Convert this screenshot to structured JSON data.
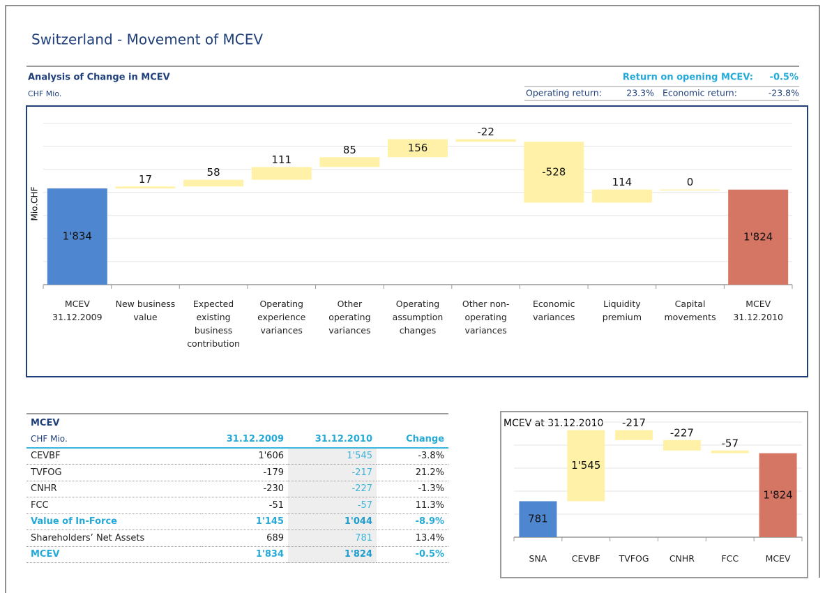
{
  "title": "Switzerland - Movement of MCEV",
  "header": {
    "subtitle": "Analysis of Change in MCEV",
    "unit": "CHF Mio.",
    "return_label": "Return on opening MCEV:",
    "return_value": "-0.5%",
    "operating_label": "Operating return:",
    "operating_value": "23.3%",
    "economic_label": "Economic return:",
    "economic_value": "-23.8%"
  },
  "chart_data": [
    {
      "type": "waterfall",
      "y_label": "Mio.CHF",
      "categories": [
        "MCEV 31.12.2009",
        "New business value",
        "Expected existing business contribution",
        "Operating experience variances",
        "Other operating variances",
        "Operating assumption changes",
        "Other non-operating variances",
        "Economic variances",
        "Liquidity premium",
        "Capital movements",
        "MCEV 31.12.2010"
      ],
      "values": [
        1834,
        17,
        58,
        111,
        85,
        156,
        -22,
        -528,
        114,
        0,
        1824
      ],
      "value_labels": [
        "1'834",
        "17",
        "58",
        "111",
        "85",
        "156",
        "-22",
        "-528",
        "114",
        "0",
        "1'824"
      ],
      "start_color": "#4f86d0",
      "step_color": "#fff2a8",
      "end_color": "#d57563",
      "ylim": [
        1000,
        2500
      ],
      "yticks": [
        1000,
        1200,
        1400,
        1600,
        1800,
        2000,
        2200,
        2400
      ],
      "grid": true
    },
    {
      "type": "waterfall",
      "title": "MCEV at 31.12.2010",
      "categories": [
        "SNA",
        "CEVBF",
        "TVFOG",
        "CNHR",
        "FCC",
        "MCEV"
      ],
      "values": [
        781,
        1545,
        -217,
        -227,
        -57,
        1824
      ],
      "value_labels": [
        "781",
        "1'545",
        "-217",
        "-227",
        "-57",
        "1'824"
      ],
      "start_color": "#4f86d0",
      "step_color": "#fff2a8",
      "end_color": "#d57563",
      "ylim": [
        0,
        2500
      ],
      "yticks": [
        0,
        500,
        1000,
        1500,
        2000,
        2500
      ],
      "grid": true
    }
  ],
  "table": {
    "title": "MCEV",
    "unit": "CHF Mio.",
    "columns": [
      "31.12.2009",
      "31.12.2010",
      "Change"
    ],
    "rows": [
      [
        "CEVBF",
        "1'606",
        "1'545",
        "-3.8%"
      ],
      [
        "TVFOG",
        "-179",
        "-217",
        "21.2%"
      ],
      [
        "CNHR",
        "-230",
        "-227",
        "-1.3%"
      ],
      [
        "FCC",
        "-51",
        "-57",
        "11.3%"
      ],
      [
        "Value of In-Force",
        "1'145",
        "1'044",
        "-8.9%"
      ],
      [
        "Shareholders’ Net Assets",
        "689",
        "781",
        "13.4%"
      ],
      [
        "MCEV",
        "1'834",
        "1'824",
        "-0.5%"
      ]
    ]
  }
}
